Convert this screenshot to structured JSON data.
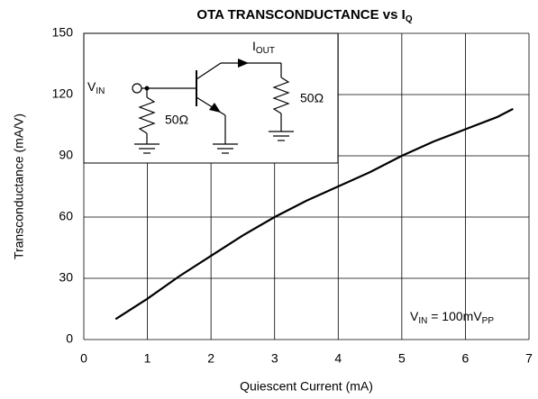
{
  "chart_data": {
    "type": "line",
    "title": [
      "OTA TRANSCONDUCTANCE vs I",
      "Q"
    ],
    "x_label": "Quiescent Current (mA)",
    "y_label": "Transconductance (mA/V)",
    "annotation": [
      "V",
      "IN",
      " = 100mV",
      "PP"
    ],
    "inset": {
      "vin": [
        "V",
        "IN"
      ],
      "iout": [
        "I",
        "OUT"
      ],
      "r_in": "50Ω",
      "r_out": "50Ω"
    },
    "x": [
      0.5,
      1,
      1.5,
      2,
      2.5,
      3,
      3.5,
      4,
      4.5,
      5,
      5.5,
      6,
      6.5,
      6.75
    ],
    "series": [
      {
        "name": "Transconductance",
        "color": "#000000",
        "values": [
          10,
          20,
          31,
          41,
          51,
          60,
          68,
          75,
          82,
          90,
          97,
          103,
          109,
          113
        ]
      }
    ],
    "xlim": [
      0,
      7
    ],
    "xticks": [
      0,
      1,
      2,
      3,
      4,
      5,
      6,
      7
    ],
    "ylim": [
      0,
      150
    ],
    "yticks": [
      0,
      30,
      60,
      90,
      120,
      150
    ],
    "grid": true
  }
}
